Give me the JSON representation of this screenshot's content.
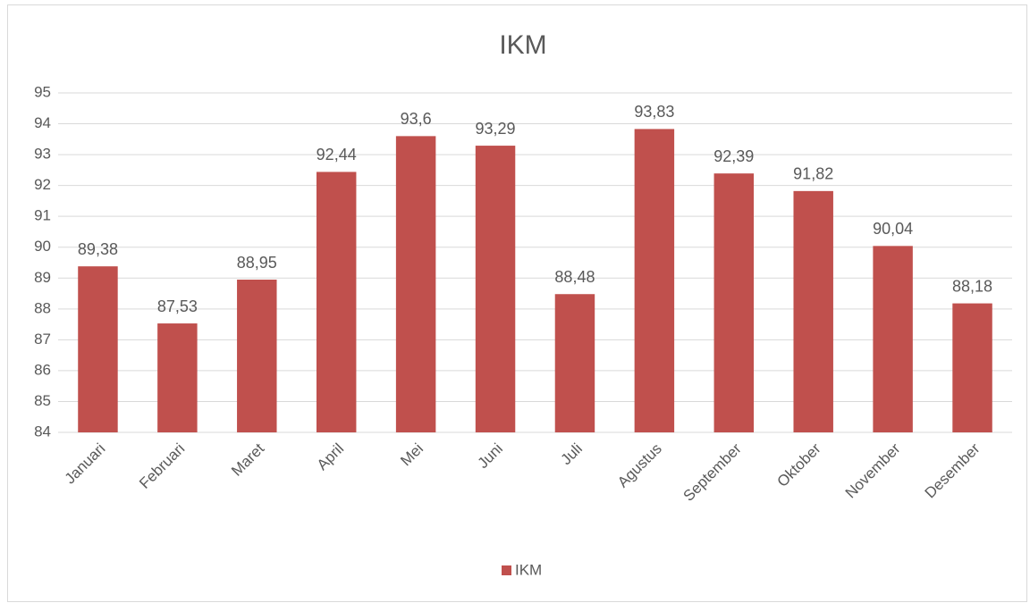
{
  "chart_data": {
    "type": "bar",
    "title": "IKM",
    "categories": [
      "Januari",
      "Februari",
      "Maret",
      "April",
      "Mei",
      "Juni",
      "Juli",
      "Agustus",
      "September",
      "Oktober",
      "November",
      "Desember"
    ],
    "series": [
      {
        "name": "IKM",
        "color": "#c0504d",
        "values": [
          89.38,
          87.53,
          88.95,
          92.44,
          93.6,
          93.29,
          88.48,
          93.83,
          92.39,
          91.82,
          90.04,
          88.18
        ],
        "value_labels": [
          "89,38",
          "87,53",
          "88,95",
          "92,44",
          "93,6",
          "93,29",
          "88,48",
          "93,83",
          "92,39",
          "91,82",
          "90,04",
          "88,18"
        ]
      }
    ],
    "ylim": [
      84,
      95
    ],
    "yticks": [
      84,
      85,
      86,
      87,
      88,
      89,
      90,
      91,
      92,
      93,
      94,
      95
    ],
    "grid": true,
    "legend": "bottom"
  }
}
